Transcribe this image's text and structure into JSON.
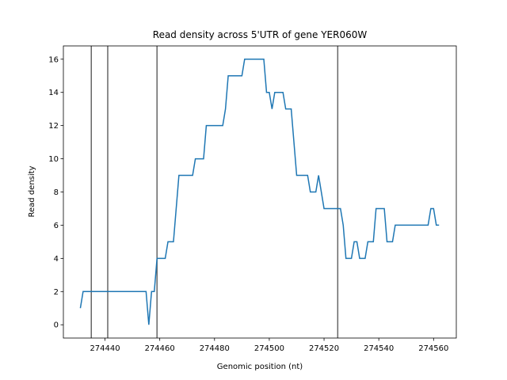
{
  "chart_data": {
    "type": "line",
    "title": "Read density across 5'UTR of gene YER060W",
    "xlabel": "Genomic position (nt)",
    "ylabel": "Read density",
    "x": [
      274431,
      274432,
      274455,
      274456,
      274457,
      274458,
      274459,
      274462,
      274463,
      274465,
      274467,
      274472,
      274473,
      274476,
      274477,
      274483,
      274484,
      274485,
      274490,
      274491,
      274498,
      274499,
      274500,
      274501,
      274502,
      274505,
      274506,
      274508,
      274510,
      274514,
      274515,
      274517,
      274518,
      274520,
      274525,
      274526,
      274527,
      274528,
      274530,
      274531,
      274532,
      274533,
      274535,
      274536,
      274538,
      274539,
      274542,
      274543,
      274545,
      274546,
      274558,
      274559,
      274560,
      274561,
      274562
    ],
    "values": [
      1,
      2,
      2,
      0,
      2,
      2,
      4,
      4,
      5,
      5,
      9,
      9,
      10,
      10,
      12,
      12,
      13,
      15,
      15,
      16,
      16,
      14,
      14,
      13,
      14,
      14,
      13,
      13,
      9,
      9,
      8,
      8,
      9,
      7,
      7,
      7,
      6,
      4,
      4,
      5,
      5,
      4,
      4,
      5,
      5,
      7,
      7,
      5,
      5,
      6,
      6,
      7,
      7,
      6,
      6
    ],
    "color": "#1f77b4",
    "vlines": [
      274435,
      274441,
      274459,
      274525
    ],
    "vline_color": "#666666",
    "xlim": [
      274424.8,
      274568.3
    ],
    "xticks": [
      274440,
      274460,
      274480,
      274500,
      274520,
      274540,
      274560
    ],
    "ylim": [
      -0.8,
      16.8
    ],
    "yticks": [
      0,
      2,
      4,
      6,
      8,
      10,
      12,
      14,
      16
    ]
  }
}
